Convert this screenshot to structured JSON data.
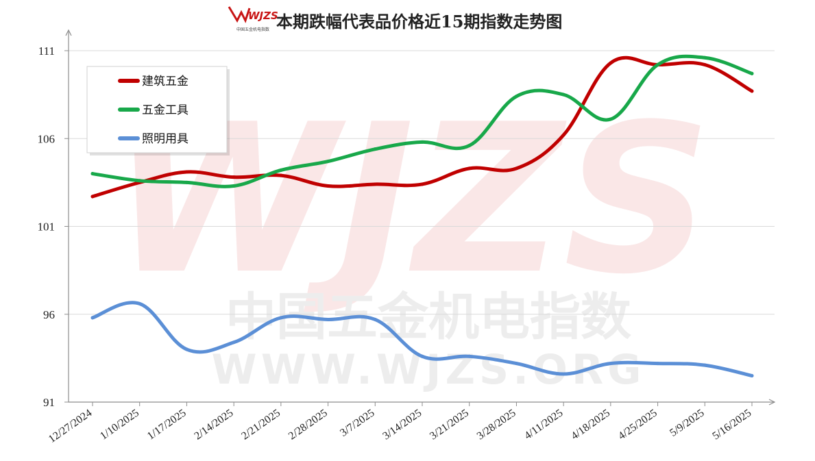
{
  "logo": {
    "text": "WJZS",
    "subtext": "中国五金机电指数"
  },
  "watermark": {
    "big": "WJZS",
    "line1": "中国五金机电指数",
    "line2": "WWW.WJZS.ORG"
  },
  "chart_data": {
    "type": "line",
    "title": "本期跌幅代表品价格近15期指数走势图",
    "xlabel": "",
    "ylabel": "",
    "ylim": [
      91,
      111
    ],
    "yticks": [
      91,
      96,
      101,
      106,
      111
    ],
    "grid": true,
    "legend_position": "top-left",
    "categories": [
      "12/27/2024",
      "1/10/2025",
      "1/17/2025",
      "2/14/2025",
      "2/21/2025",
      "2/28/2025",
      "3/7/2025",
      "3/14/2025",
      "3/21/2025",
      "3/28/2025",
      "4/11/2025",
      "4/18/2025",
      "4/25/2025",
      "5/9/2025",
      "5/16/2025"
    ],
    "series": [
      {
        "name": "建筑五金",
        "color": "#c00000",
        "values": [
          102.7,
          103.5,
          104.1,
          103.8,
          103.9,
          103.3,
          103.4,
          103.4,
          104.3,
          104.3,
          106.2,
          110.3,
          110.2,
          110.2,
          108.7
        ]
      },
      {
        "name": "五金工具",
        "color": "#18a84a",
        "values": [
          104.0,
          103.6,
          103.5,
          103.3,
          104.2,
          104.7,
          105.4,
          105.8,
          105.6,
          108.4,
          108.5,
          107.1,
          110.2,
          110.6,
          109.7
        ]
      },
      {
        "name": "照明用具",
        "color": "#5b8fd6",
        "values": [
          95.8,
          96.6,
          94.0,
          94.4,
          95.8,
          95.7,
          95.7,
          93.6,
          93.6,
          93.2,
          92.6,
          93.2,
          93.2,
          93.1,
          92.5
        ]
      }
    ]
  }
}
